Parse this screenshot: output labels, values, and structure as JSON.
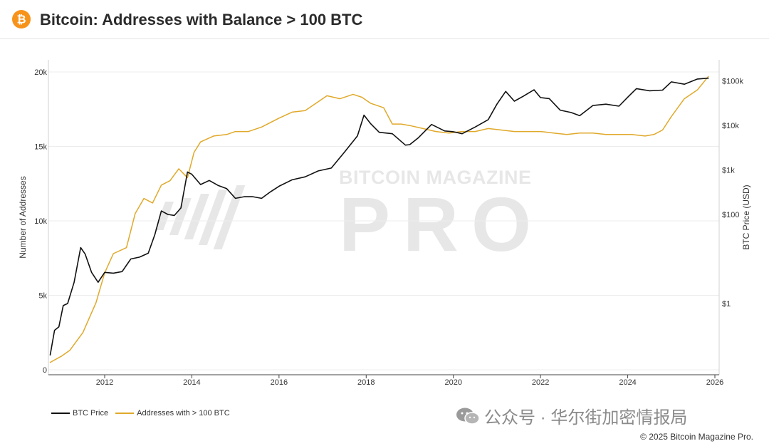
{
  "header": {
    "title": "Bitcoin: Addresses with Balance > 100 BTC",
    "logo_icon": "bitcoin-logo-icon",
    "logo_color": "#f7931a"
  },
  "watermark": {
    "line1": "BITCOIN MAGAZINE",
    "line2": "PRO"
  },
  "footer": {
    "wechat_text": "公众号 · 华尔街加密情报局",
    "copyright": "© 2025 Bitcoin Magazine Pro."
  },
  "chart_data": {
    "type": "line",
    "title": "Bitcoin: Addresses with Balance > 100 BTC",
    "x_ticks": [
      "2012",
      "2014",
      "2016",
      "2018",
      "2020",
      "2022",
      "2024",
      "2026"
    ],
    "x_range": [
      2010.75,
      2026.1
    ],
    "y_left": {
      "label": "Number of Addresses",
      "ticks": [
        "0",
        "5k",
        "10k",
        "15k",
        "20k"
      ],
      "tick_values": [
        0,
        5000,
        10000,
        15000,
        20000
      ],
      "range": [
        0,
        20000
      ]
    },
    "y_right": {
      "label": "BTC Price (USD)",
      "scale": "log",
      "ticks": [
        "$1",
        "$100",
        "$1k",
        "$10k",
        "$100k"
      ],
      "tick_values": [
        1,
        100,
        1000,
        10000,
        100000
      ],
      "range": [
        0.008,
        160000
      ]
    },
    "grid": true,
    "legend_position": "bottom-left",
    "series": [
      {
        "name": "BTC Price",
        "color": "#111111",
        "axis": "right",
        "x": [
          2010.75,
          2010.85,
          2010.95,
          2011.05,
          2011.15,
          2011.3,
          2011.45,
          2011.55,
          2011.7,
          2011.85,
          2012.0,
          2012.2,
          2012.4,
          2012.6,
          2012.8,
          2013.0,
          2013.15,
          2013.3,
          2013.45,
          2013.6,
          2013.75,
          2013.9,
          2014.0,
          2014.2,
          2014.4,
          2014.6,
          2014.8,
          2015.0,
          2015.2,
          2015.4,
          2015.6,
          2015.8,
          2016.0,
          2016.3,
          2016.6,
          2016.9,
          2017.2,
          2017.5,
          2017.8,
          2017.95,
          2018.1,
          2018.3,
          2018.6,
          2018.9,
          2019.0,
          2019.2,
          2019.5,
          2019.8,
          2020.0,
          2020.2,
          2020.5,
          2020.8,
          2021.0,
          2021.2,
          2021.4,
          2021.6,
          2021.85,
          2022.0,
          2022.2,
          2022.45,
          2022.7,
          2022.9,
          2023.2,
          2023.5,
          2023.8,
          2024.0,
          2024.2,
          2024.5,
          2024.8,
          2025.0,
          2025.3,
          2025.6,
          2025.85
        ],
        "values": [
          0.07,
          0.25,
          0.3,
          0.9,
          1.0,
          3.0,
          18,
          13,
          5.0,
          3.0,
          5.0,
          4.8,
          5.2,
          10,
          11,
          13.5,
          35,
          120,
          100,
          95,
          140,
          900,
          800,
          470,
          580,
          450,
          380,
          230,
          250,
          250,
          230,
          320,
          430,
          600,
          700,
          950,
          1100,
          2500,
          5800,
          17000,
          11000,
          7000,
          6500,
          3600,
          3700,
          5300,
          10500,
          7500,
          7200,
          6500,
          9200,
          13500,
          30000,
          58000,
          35000,
          45000,
          63000,
          42000,
          40000,
          22000,
          19500,
          16500,
          28000,
          30000,
          27000,
          43000,
          67000,
          60000,
          62000,
          95000,
          84000,
          110000,
          115000
        ]
      },
      {
        "name": "Addresses with > 100 BTC",
        "color": "#e0a92a",
        "axis": "left",
        "x": [
          2010.75,
          2011.0,
          2011.2,
          2011.5,
          2011.8,
          2012.0,
          2012.2,
          2012.5,
          2012.7,
          2012.9,
          2013.1,
          2013.3,
          2013.5,
          2013.7,
          2013.9,
          2014.05,
          2014.2,
          2014.5,
          2014.8,
          2015.0,
          2015.3,
          2015.6,
          2016.0,
          2016.3,
          2016.6,
          2016.9,
          2017.1,
          2017.4,
          2017.7,
          2017.9,
          2018.1,
          2018.4,
          2018.6,
          2018.8,
          2019.0,
          2019.3,
          2019.6,
          2019.9,
          2020.2,
          2020.5,
          2020.8,
          2021.1,
          2021.4,
          2021.7,
          2022.0,
          2022.3,
          2022.6,
          2022.9,
          2023.2,
          2023.5,
          2023.8,
          2024.1,
          2024.4,
          2024.6,
          2024.8,
          2025.0,
          2025.3,
          2025.6,
          2025.85
        ],
        "values": [
          500,
          900,
          1300,
          2500,
          4500,
          6500,
          7800,
          8200,
          10500,
          11500,
          11200,
          12400,
          12700,
          13500,
          12900,
          14600,
          15300,
          15700,
          15800,
          16000,
          16000,
          16300,
          16900,
          17300,
          17400,
          18000,
          18400,
          18200,
          18500,
          18300,
          17900,
          17600,
          16500,
          16500,
          16400,
          16200,
          16000,
          15900,
          16000,
          16000,
          16200,
          16100,
          16000,
          16000,
          16000,
          15900,
          15800,
          15900,
          15900,
          15800,
          15800,
          15800,
          15700,
          15800,
          16100,
          17000,
          18200,
          18800,
          19700
        ]
      }
    ]
  }
}
